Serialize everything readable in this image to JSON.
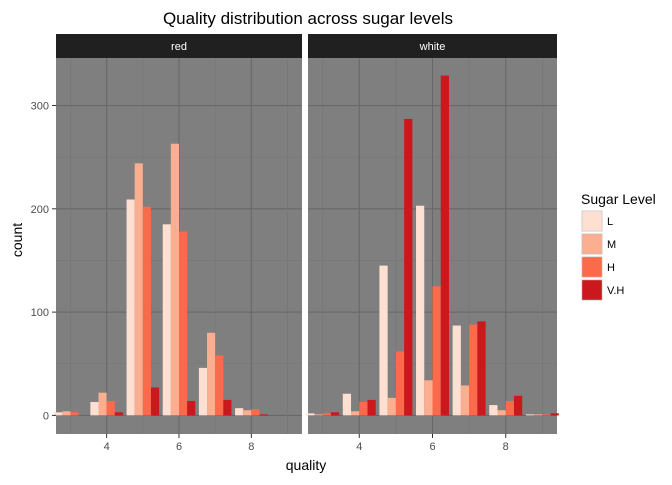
{
  "chart_data": {
    "type": "bar",
    "title": "Quality distribution across sugar levels",
    "xlabel": "quality",
    "ylabel": "count",
    "x": [
      3,
      4,
      5,
      6,
      7,
      8,
      9
    ],
    "x_ticks": [
      4,
      6,
      8
    ],
    "y_ticks": [
      0,
      100,
      200,
      300
    ],
    "xlim": [
      2.6,
      9.4
    ],
    "ylim": [
      -18,
      346
    ],
    "grid": true,
    "legend": {
      "title": "Sugar Level",
      "position": "right",
      "colors": [
        "#FEE0D2",
        "#FCAE91",
        "#FB6A4A",
        "#CB181D"
      ]
    },
    "series": [
      {
        "name": "L",
        "color": "#FEE0D2"
      },
      {
        "name": "M",
        "color": "#FCAE91"
      },
      {
        "name": "H",
        "color": "#FB6A4A"
      },
      {
        "name": "V.H",
        "color": "#CB181D"
      }
    ],
    "panels": [
      {
        "label": "red",
        "values": {
          "L": [
            3,
            13,
            209,
            185,
            46,
            7,
            0
          ],
          "M": [
            4,
            22,
            244,
            263,
            80,
            5,
            0
          ],
          "H": [
            3,
            14,
            202,
            178,
            58,
            6,
            0
          ],
          "V.H": [
            0,
            3,
            27,
            14,
            15,
            1,
            0
          ]
        }
      },
      {
        "label": "white",
        "values": {
          "L": [
            2,
            21,
            145,
            203,
            87,
            10,
            1
          ],
          "M": [
            1,
            4,
            17,
            34,
            29,
            5,
            1
          ],
          "H": [
            2,
            13,
            62,
            125,
            88,
            14,
            1
          ],
          "V.H": [
            3,
            15,
            287,
            329,
            91,
            19,
            2
          ]
        }
      }
    ]
  }
}
